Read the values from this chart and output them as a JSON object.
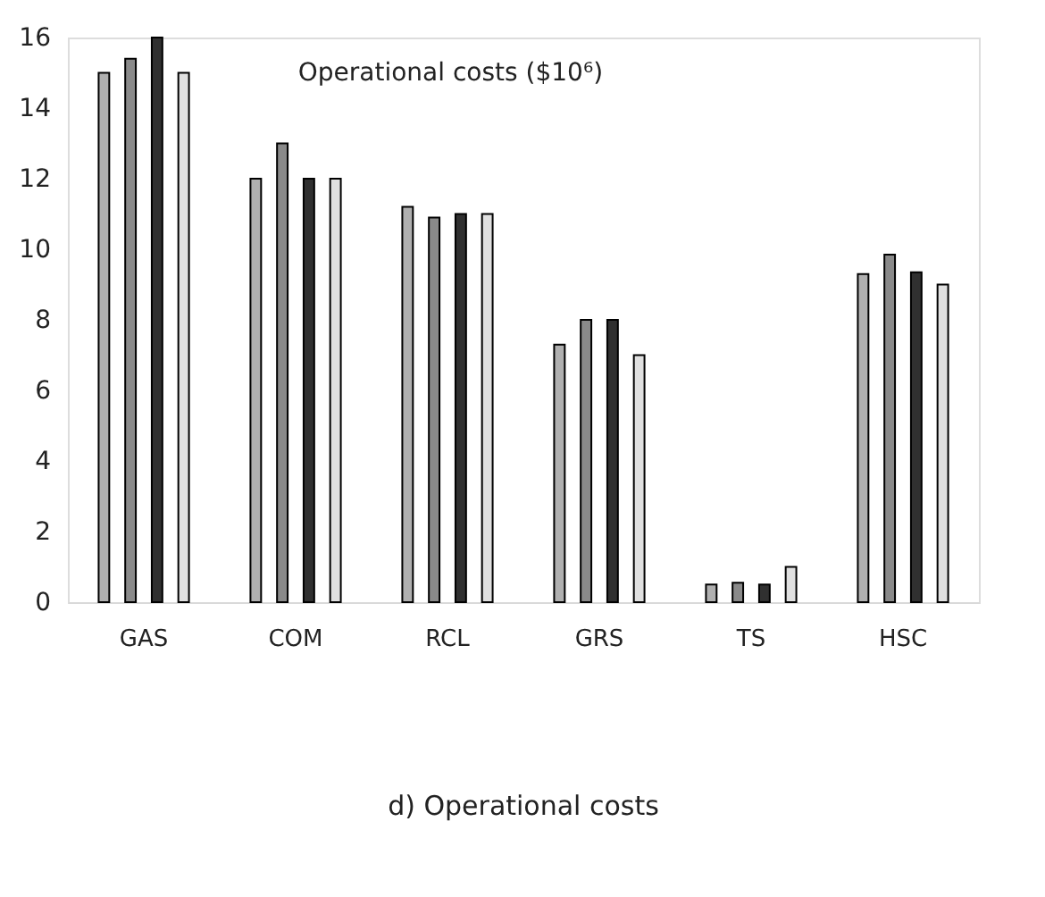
{
  "chart_data": {
    "type": "bar",
    "title": "Operational costs ($10⁶)",
    "categories": [
      "GAS",
      "COM",
      "RCL",
      "GRS",
      "TS",
      "HSC"
    ],
    "series": [
      {
        "color": "#b0b0b0",
        "values": [
          15,
          12,
          11.2,
          7.3,
          0.5,
          9.3
        ]
      },
      {
        "color": "#8a8a8a",
        "values": [
          15.4,
          13,
          10.9,
          8,
          0.55,
          9.85
        ]
      },
      {
        "color": "#303030",
        "values": [
          16,
          12,
          11,
          8,
          0.5,
          9.35
        ]
      },
      {
        "color": "#e0e0e0",
        "values": [
          15,
          12,
          11,
          7,
          1.0,
          9.0
        ]
      }
    ],
    "ylim": [
      0,
      16
    ],
    "yticks": [
      0,
      2,
      4,
      6,
      8,
      10,
      12,
      14,
      16
    ],
    "grid": false,
    "legend": false,
    "annotations": [
      "d) Operational costs"
    ]
  }
}
